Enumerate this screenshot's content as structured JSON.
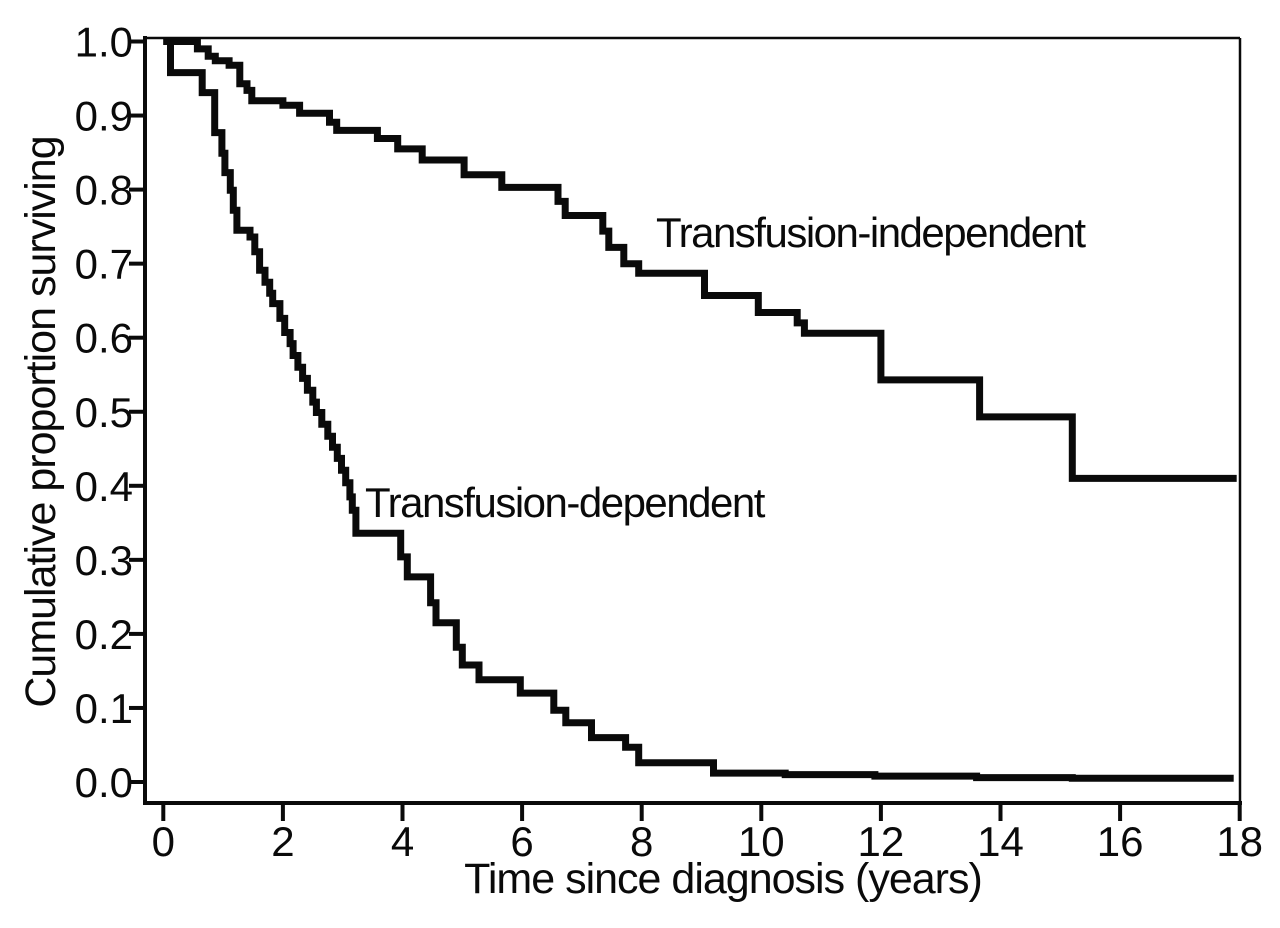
{
  "figure": {
    "background_color": "#ffffff",
    "curve_color": "#0a0a0a",
    "axis_color": "#0a0a0a",
    "text_color": "#0a0a0a"
  },
  "chart_data": {
    "type": "line",
    "subtype": "kaplan-meier-step-survival",
    "title": "",
    "xlabel": "Time since diagnosis (years)",
    "ylabel": "Cumulative proportion surviving",
    "xlim": [
      0,
      18
    ],
    "ylim": [
      0.0,
      1.0
    ],
    "grid": false,
    "legend_position": "inline-annotations",
    "x_ticks": {
      "values": [
        0,
        2,
        4,
        6,
        8,
        10,
        12,
        14,
        16,
        18
      ],
      "labels": [
        "0",
        "2",
        "4",
        "6",
        "8",
        "10",
        "12",
        "14",
        "16",
        "18"
      ]
    },
    "y_ticks": {
      "values": [
        0.0,
        0.1,
        0.2,
        0.3,
        0.4,
        0.5,
        0.6,
        0.7,
        0.8,
        0.9,
        1.0
      ],
      "labels": [
        "0.0",
        "0.1",
        "0.2",
        "0.3",
        "0.4",
        "0.5",
        "0.6",
        "0.7",
        "0.8",
        "0.9",
        "1.0"
      ]
    },
    "series": [
      {
        "name": "Transfusion-independent",
        "points": [
          [
            0,
            1.0
          ],
          [
            0.57,
            0.99
          ],
          [
            0.75,
            0.98
          ],
          [
            0.87,
            0.974
          ],
          [
            1.1,
            0.968
          ],
          [
            1.28,
            0.943
          ],
          [
            1.4,
            0.934
          ],
          [
            1.48,
            0.92
          ],
          [
            2.0,
            0.914
          ],
          [
            2.28,
            0.903
          ],
          [
            2.78,
            0.891
          ],
          [
            2.9,
            0.88
          ],
          [
            3.58,
            0.869
          ],
          [
            3.92,
            0.855
          ],
          [
            4.33,
            0.84
          ],
          [
            5.03,
            0.82
          ],
          [
            5.66,
            0.803
          ],
          [
            6.6,
            0.784
          ],
          [
            6.72,
            0.765
          ],
          [
            7.35,
            0.744
          ],
          [
            7.45,
            0.722
          ],
          [
            7.7,
            0.7
          ],
          [
            7.95,
            0.687
          ],
          [
            9.05,
            0.657
          ],
          [
            9.95,
            0.634
          ],
          [
            10.6,
            0.62
          ],
          [
            10.72,
            0.606
          ],
          [
            12.0,
            0.543
          ],
          [
            13.65,
            0.493
          ],
          [
            15.2,
            0.41
          ],
          [
            17.95,
            0.41
          ]
        ]
      },
      {
        "name": "Transfusion-dependent",
        "points": [
          [
            0,
            1.0
          ],
          [
            0.12,
            0.958
          ],
          [
            0.65,
            0.931
          ],
          [
            0.86,
            0.877
          ],
          [
            0.98,
            0.849
          ],
          [
            1.03,
            0.823
          ],
          [
            1.12,
            0.799
          ],
          [
            1.17,
            0.772
          ],
          [
            1.23,
            0.745
          ],
          [
            1.45,
            0.736
          ],
          [
            1.53,
            0.716
          ],
          [
            1.61,
            0.691
          ],
          [
            1.7,
            0.675
          ],
          [
            1.78,
            0.66
          ],
          [
            1.83,
            0.646
          ],
          [
            1.95,
            0.626
          ],
          [
            2.03,
            0.607
          ],
          [
            2.12,
            0.592
          ],
          [
            2.17,
            0.576
          ],
          [
            2.25,
            0.56
          ],
          [
            2.33,
            0.545
          ],
          [
            2.41,
            0.529
          ],
          [
            2.5,
            0.513
          ],
          [
            2.56,
            0.499
          ],
          [
            2.65,
            0.483
          ],
          [
            2.75,
            0.467
          ],
          [
            2.83,
            0.452
          ],
          [
            2.91,
            0.437
          ],
          [
            2.98,
            0.421
          ],
          [
            3.05,
            0.404
          ],
          [
            3.12,
            0.385
          ],
          [
            3.16,
            0.367
          ],
          [
            3.22,
            0.336
          ],
          [
            3.97,
            0.304
          ],
          [
            4.08,
            0.277
          ],
          [
            4.47,
            0.242
          ],
          [
            4.56,
            0.215
          ],
          [
            4.9,
            0.182
          ],
          [
            5.0,
            0.158
          ],
          [
            5.28,
            0.138
          ],
          [
            5.97,
            0.12
          ],
          [
            6.53,
            0.097
          ],
          [
            6.73,
            0.08
          ],
          [
            7.16,
            0.06
          ],
          [
            7.73,
            0.047
          ],
          [
            7.95,
            0.026
          ],
          [
            9.2,
            0.012
          ],
          [
            10.4,
            0.01
          ],
          [
            11.9,
            0.008
          ],
          [
            13.6,
            0.006
          ],
          [
            15.2,
            0.005
          ],
          [
            17.9,
            0.005
          ]
        ]
      }
    ],
    "annotations": [
      {
        "text": "Transfusion-independent",
        "x_years": 8.2,
        "y_proportion": 0.74
      },
      {
        "text": "Transfusion-dependent",
        "x_years": 3.35,
        "y_proportion": 0.39
      }
    ]
  }
}
